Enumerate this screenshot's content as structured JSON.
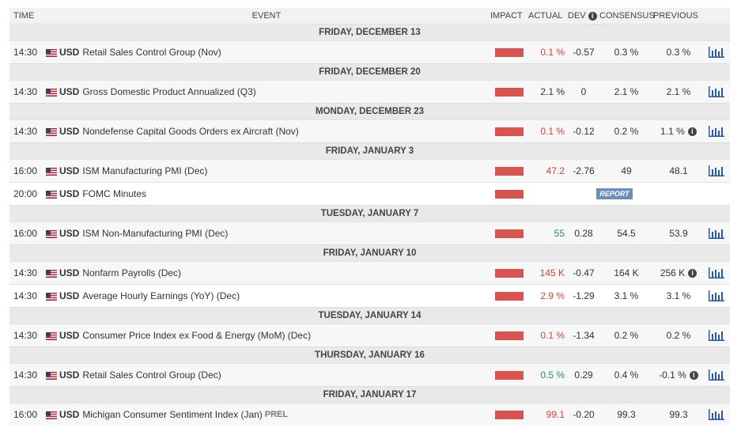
{
  "headers": {
    "time": "TIME",
    "event": "EVENT",
    "impact": "IMPACT",
    "actual": "ACTUAL",
    "dev": "DEV",
    "consensus": "CONSENSUS",
    "previous": "PREVIOUS"
  },
  "colors": {
    "impact_high": "#d9534f",
    "actual_worse": "#d0453c",
    "actual_better": "#2e8b57",
    "report_bg": "#6a8fb8"
  },
  "groups": [
    {
      "date": "FRIDAY, DECEMBER 13",
      "events": [
        {
          "time": "14:30",
          "currency": "USD",
          "name": "Retail Sales Control Group (Nov)",
          "actual": "0.1 %",
          "actual_color": "red",
          "dev": "-0.57",
          "consensus": "0.3 %",
          "previous": "0.3 %",
          "prev_info": false
        }
      ]
    },
    {
      "date": "FRIDAY, DECEMBER 20",
      "events": [
        {
          "time": "14:30",
          "currency": "USD",
          "name": "Gross Domestic Product Annualized (Q3)",
          "actual": "2.1 %",
          "actual_color": "neutral",
          "dev": "0",
          "consensus": "2.1 %",
          "previous": "2.1 %",
          "prev_info": false
        }
      ]
    },
    {
      "date": "MONDAY, DECEMBER 23",
      "events": [
        {
          "time": "14:30",
          "currency": "USD",
          "name": "Nondefense Capital Goods Orders ex Aircraft (Nov)",
          "actual": "0.1 %",
          "actual_color": "red",
          "dev": "-0.12",
          "consensus": "0.2 %",
          "previous": "1.1 %",
          "prev_info": true
        }
      ]
    },
    {
      "date": "FRIDAY, JANUARY 3",
      "events": [
        {
          "time": "16:00",
          "currency": "USD",
          "name": "ISM Manufacturing PMI (Dec)",
          "actual": "47.2",
          "actual_color": "red",
          "dev": "-2.76",
          "consensus": "49",
          "previous": "48.1",
          "prev_info": false
        },
        {
          "time": "20:00",
          "currency": "USD",
          "name": "FOMC Minutes",
          "report": "REPORT"
        }
      ]
    },
    {
      "date": "TUESDAY, JANUARY 7",
      "events": [
        {
          "time": "16:00",
          "currency": "USD",
          "name": "ISM Non-Manufacturing PMI (Dec)",
          "actual": "55",
          "actual_color": "green",
          "dev": "0.28",
          "consensus": "54.5",
          "previous": "53.9",
          "prev_info": false
        }
      ]
    },
    {
      "date": "FRIDAY, JANUARY 10",
      "events": [
        {
          "time": "14:30",
          "currency": "USD",
          "name": "Nonfarm Payrolls (Dec)",
          "actual": "145 K",
          "actual_color": "red",
          "dev": "-0.47",
          "consensus": "164 K",
          "previous": "256 K",
          "prev_info": true
        },
        {
          "time": "14:30",
          "currency": "USD",
          "name": "Average Hourly Earnings (YoY) (Dec)",
          "actual": "2.9 %",
          "actual_color": "red",
          "dev": "-1.29",
          "consensus": "3.1 %",
          "previous": "3.1 %",
          "prev_info": false
        }
      ]
    },
    {
      "date": "TUESDAY, JANUARY 14",
      "events": [
        {
          "time": "14:30",
          "currency": "USD",
          "name": "Consumer Price Index ex Food & Energy (MoM) (Dec)",
          "actual": "0.1 %",
          "actual_color": "red",
          "dev": "-1.34",
          "consensus": "0.2 %",
          "previous": "0.2 %",
          "prev_info": false
        }
      ]
    },
    {
      "date": "THURSDAY, JANUARY 16",
      "events": [
        {
          "time": "14:30",
          "currency": "USD",
          "name": "Retail Sales Control Group (Dec)",
          "actual": "0.5 %",
          "actual_color": "green",
          "dev": "0.29",
          "consensus": "0.4 %",
          "previous": "-0.1 %",
          "prev_info": true
        }
      ]
    },
    {
      "date": "FRIDAY, JANUARY 17",
      "events": [
        {
          "time": "16:00",
          "currency": "USD",
          "name": "Michigan Consumer Sentiment Index (Jan)",
          "tag": "PREL",
          "actual": "99.1",
          "actual_color": "red",
          "dev": "-0.20",
          "consensus": "99.3",
          "previous": "99.3",
          "prev_info": false
        }
      ]
    }
  ]
}
